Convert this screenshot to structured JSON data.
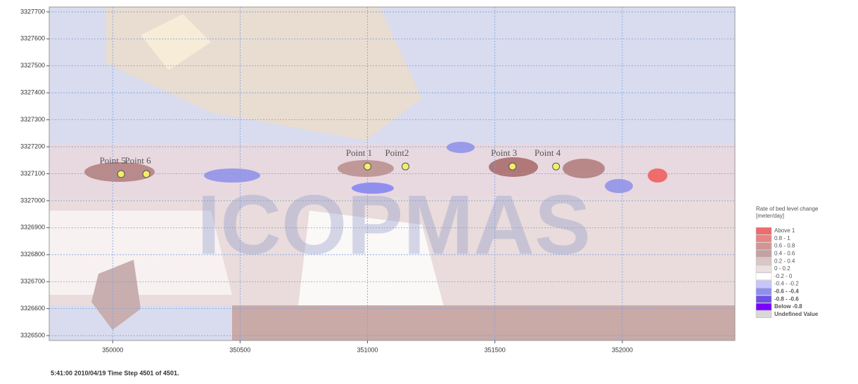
{
  "chart_data": {
    "type": "contour",
    "watermark": "ICOPMAS",
    "xlim": [
      349751,
      352442
    ],
    "ylim": [
      3326482,
      3327718
    ],
    "xticks": [
      350000,
      350500,
      351000,
      351500,
      352000
    ],
    "yticks": [
      3326500,
      3326600,
      3326700,
      3326800,
      3326900,
      3327000,
      3327100,
      3327200,
      3327300,
      3327400,
      3327500,
      3327600,
      3327700
    ],
    "grid": true,
    "points": [
      {
        "name": "Point 5",
        "x": 350033,
        "y": 3327099
      },
      {
        "name": "Point 6",
        "x": 350132,
        "y": 3327099
      },
      {
        "name": "Point 1",
        "x": 351000,
        "y": 3327127
      },
      {
        "name": "Point2",
        "x": 351149,
        "y": 3327127
      },
      {
        "name": "Point 3",
        "x": 351569,
        "y": 3327127
      },
      {
        "name": "Point 4",
        "x": 351740,
        "y": 3327127
      }
    ],
    "point_color": "#f2ef6a",
    "legend": {
      "title": [
        "Rate of bed level change",
        "[meter/day]"
      ],
      "entries": [
        {
          "label": "Above   1",
          "color": "#f06b6b"
        },
        {
          "label": "0.8 -   1",
          "color": "#e88484"
        },
        {
          "label": "0.6 -  0.8",
          "color": "#d49494"
        },
        {
          "label": "0.4 -  0.6",
          "color": "#c2a2a2"
        },
        {
          "label": "0.2 -  0.4",
          "color": "#d9c6c6"
        },
        {
          "label": "0 -  0.2",
          "color": "#ece0e0"
        },
        {
          "label": "-0.2 -    0",
          "color": "#ffffff"
        },
        {
          "label": "-0.4 - -0.2",
          "color": "#c6c6fa"
        },
        {
          "label": "-0.6 - -0.4",
          "color": "#8f8ff0"
        },
        {
          "label": "-0.8 - -0.6",
          "color": "#6e4fe8"
        },
        {
          "label": "Below -0.8",
          "color": "#7a00ff"
        },
        {
          "label": "Undefined Value",
          "color": "#d8d8d8"
        }
      ]
    },
    "footer": "5:41:00 2010/04/19  Time Step 4501 of 4501."
  }
}
